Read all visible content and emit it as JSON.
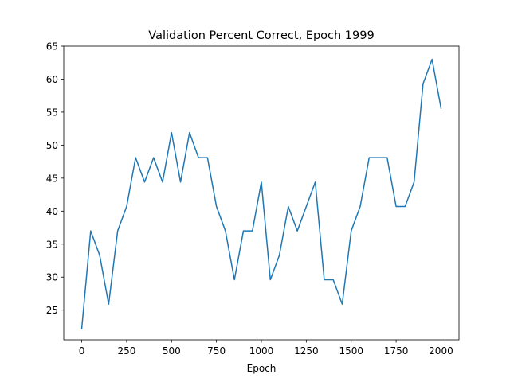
{
  "chart_data": {
    "type": "line",
    "title": "Validation Percent Correct, Epoch 1999",
    "xlabel": "Epoch",
    "ylabel": "",
    "xlim": [
      -100,
      2100
    ],
    "ylim": [
      20.5,
      65
    ],
    "xticks": [
      0,
      250,
      500,
      750,
      1000,
      1250,
      1500,
      1750,
      2000
    ],
    "yticks": [
      25,
      30,
      35,
      40,
      45,
      50,
      55,
      60,
      65
    ],
    "grid": false,
    "legend": "none",
    "series": [
      {
        "color": "#1f77b4",
        "x": [
          0,
          50,
          100,
          150,
          200,
          250,
          300,
          350,
          400,
          450,
          500,
          550,
          600,
          650,
          700,
          750,
          800,
          850,
          900,
          950,
          1000,
          1050,
          1100,
          1150,
          1200,
          1250,
          1300,
          1350,
          1400,
          1450,
          1500,
          1550,
          1600,
          1650,
          1700,
          1750,
          1800,
          1850,
          1900,
          1950,
          2000
        ],
        "y": [
          22.2,
          37.0,
          33.3,
          25.9,
          37.0,
          40.7,
          48.1,
          44.4,
          48.1,
          44.4,
          51.9,
          44.4,
          51.9,
          48.1,
          48.1,
          40.7,
          37.0,
          29.6,
          37.0,
          37.0,
          44.4,
          29.6,
          33.3,
          40.7,
          37.0,
          40.7,
          44.4,
          29.6,
          29.6,
          25.9,
          37.0,
          40.7,
          48.1,
          48.1,
          48.1,
          40.7,
          40.7,
          44.4,
          59.3,
          63.0,
          55.6
        ]
      }
    ]
  }
}
